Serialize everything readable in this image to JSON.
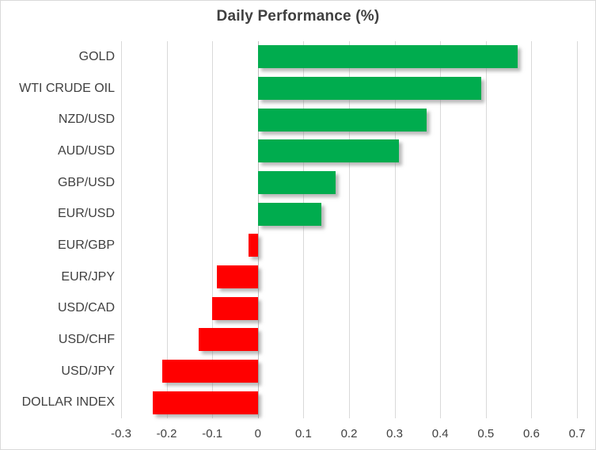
{
  "chart_data": {
    "type": "bar",
    "orientation": "horizontal",
    "title": "Daily Performance (%)",
    "categories": [
      "GOLD",
      "WTI CRUDE OIL",
      "NZD/USD",
      "AUD/USD",
      "GBP/USD",
      "EUR/USD",
      "EUR/GBP",
      "EUR/JPY",
      "USD/CAD",
      "USD/CHF",
      "USD/JPY",
      "DOLLAR INDEX"
    ],
    "values": [
      0.57,
      0.49,
      0.37,
      0.31,
      0.17,
      0.14,
      -0.02,
      -0.09,
      -0.1,
      -0.13,
      -0.21,
      -0.23
    ],
    "xlim": [
      -0.3,
      0.7
    ],
    "x_ticks": [
      -0.3,
      -0.2,
      -0.1,
      0,
      0.1,
      0.2,
      0.3,
      0.4,
      0.5,
      0.6,
      0.7
    ],
    "tick_labels": [
      "-0.3",
      "-0.2",
      "-0.1",
      "0",
      "0.1",
      "0.2",
      "0.3",
      "0.4",
      "0.5",
      "0.6",
      "0.7"
    ],
    "grid": true,
    "legend": "none",
    "colors": {
      "positive": "#00AC4E",
      "negative": "#FF0000",
      "gridline": "#D9D9D9",
      "axis_text": "#404040",
      "title_text": "#404040"
    }
  }
}
